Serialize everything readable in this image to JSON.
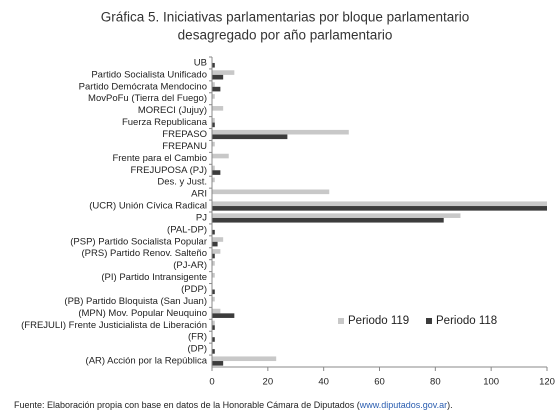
{
  "chart_data": {
    "type": "hbar",
    "title": [
      "Gráfica 5. Iniciativas parlamentarias por bloque parlamentario",
      "desagregado por año parlamentario"
    ],
    "categories": [
      "UB",
      "Partido Socialista Unificado",
      "Partido Demócrata Mendocino",
      "MovPoFu (Tierra del Fuego)",
      "MORECI (Jujuy)",
      "Fuerza Republicana",
      "FREPASO",
      "FREPANU",
      "Frente para el Cambio",
      "FREJUPOSA (PJ)",
      "Des. y Just.",
      "ARI",
      "(UCR) Unión Cívica Radical",
      "PJ",
      "(PAL-DP)",
      "(PSP) Partido Socialista Popular",
      "(PRS) Partido Renov. Salteño",
      "(PJ-AR)",
      "(PI) Partido Intransigente",
      "(PDP)",
      "(PB) Partido Bloquista (San Juan)",
      "(MPN) Mov. Popular Neuquino",
      "(FREJULI) Frente Justicialista de Liberación",
      "(FR)",
      "(DP)",
      "(AR) Acción por la República"
    ],
    "series": [
      {
        "name": "Periodo 119",
        "color": "#c8c8c8",
        "values": [
          0,
          8,
          1,
          1,
          4,
          1,
          49,
          1,
          6,
          1,
          1,
          42,
          120,
          89,
          0,
          4,
          3,
          1,
          1,
          0,
          1,
          3,
          1,
          0,
          0,
          23
        ]
      },
      {
        "name": "Periodo 118",
        "color": "#3c3c3c",
        "values": [
          1,
          4,
          3,
          0,
          0,
          1,
          27,
          0,
          0,
          3,
          0,
          0,
          120,
          83,
          1,
          2,
          1,
          0,
          0,
          1,
          0,
          8,
          1,
          1,
          1,
          4
        ]
      }
    ],
    "xlim": [
      0,
      120
    ],
    "xticks": [
      0,
      20,
      40,
      60,
      80,
      100,
      120
    ],
    "grid": false,
    "legend": "bottom-right",
    "source": [
      "Fuente: Elaboración propia con base en datos de la Honorable Cámara de Diputados (",
      "www.diputados.gov.ar",
      ")."
    ]
  }
}
